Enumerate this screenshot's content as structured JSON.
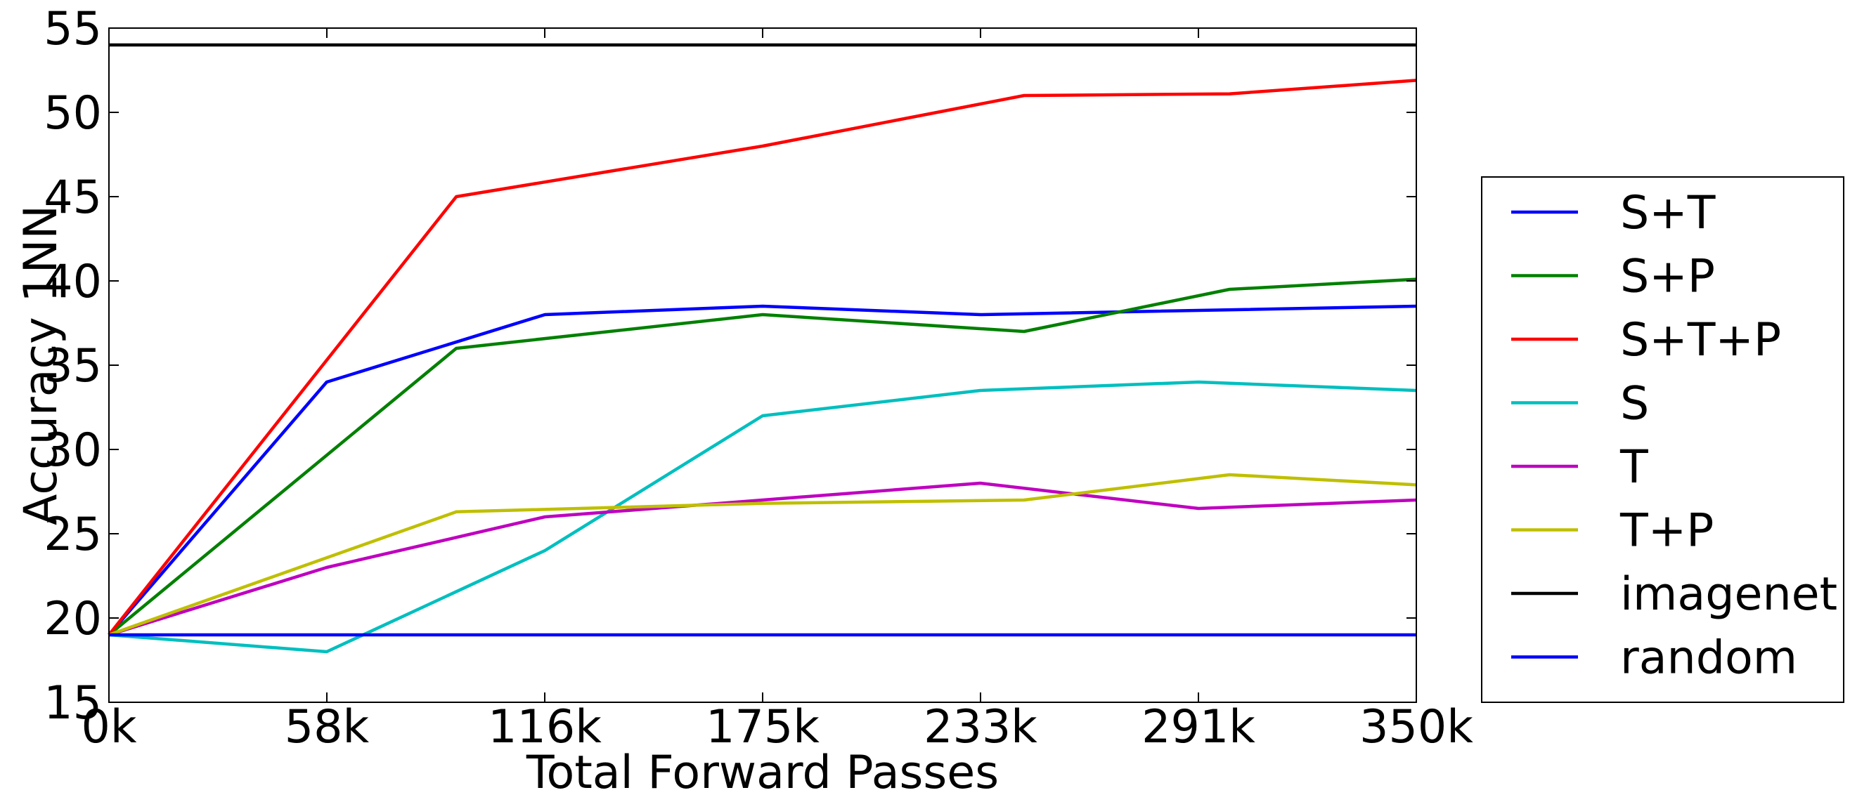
{
  "chart_data": {
    "type": "line",
    "xlabel": "Total Forward Passes",
    "ylabel": "Accuracy 1NN",
    "xlim": [
      0,
      350
    ],
    "ylim": [
      15,
      55
    ],
    "x_ticks": [
      {
        "value": 0,
        "label": "0k"
      },
      {
        "value": 58.33,
        "label": "58k"
      },
      {
        "value": 116.67,
        "label": "116k"
      },
      {
        "value": 175,
        "label": "175k"
      },
      {
        "value": 233.33,
        "label": "233k"
      },
      {
        "value": 291.67,
        "label": "291k"
      },
      {
        "value": 350,
        "label": "350k"
      }
    ],
    "y_ticks": [
      15,
      20,
      25,
      30,
      35,
      40,
      45,
      50,
      55
    ],
    "grid": false,
    "legend_position": "right",
    "series": [
      {
        "name": "S+T",
        "color": "#0000ff",
        "points": [
          [
            0,
            19
          ],
          [
            58.3,
            34
          ],
          [
            116.7,
            38
          ],
          [
            175,
            38.5
          ],
          [
            233.3,
            38
          ],
          [
            350,
            38.5
          ]
        ]
      },
      {
        "name": "S+P",
        "color": "#008000",
        "points": [
          [
            0,
            19
          ],
          [
            93,
            36
          ],
          [
            175,
            38
          ],
          [
            245,
            37
          ],
          [
            300,
            39.5
          ],
          [
            350,
            40.1
          ]
        ]
      },
      {
        "name": "S+T+P",
        "color": "#ff0000",
        "points": [
          [
            0,
            19
          ],
          [
            93,
            45
          ],
          [
            175,
            48
          ],
          [
            245,
            51
          ],
          [
            300,
            51.1
          ],
          [
            350,
            51.9
          ]
        ]
      },
      {
        "name": "S",
        "color": "#00bfbf",
        "points": [
          [
            0,
            19
          ],
          [
            58.3,
            18
          ],
          [
            116.7,
            24
          ],
          [
            175,
            32
          ],
          [
            233.3,
            33.5
          ],
          [
            291.7,
            34
          ],
          [
            350,
            33.5
          ]
        ]
      },
      {
        "name": "T",
        "color": "#bf00bf",
        "points": [
          [
            0,
            19
          ],
          [
            58.3,
            23
          ],
          [
            116.7,
            26
          ],
          [
            175,
            27
          ],
          [
            233.3,
            28
          ],
          [
            291.7,
            26.5
          ],
          [
            350,
            27
          ]
        ]
      },
      {
        "name": "T+P",
        "color": "#bfbf00",
        "points": [
          [
            0,
            19
          ],
          [
            93,
            26.3
          ],
          [
            175,
            26.8
          ],
          [
            245,
            27
          ],
          [
            300,
            28.5
          ],
          [
            350,
            27.9
          ]
        ]
      },
      {
        "name": "imagenet",
        "color": "#000000",
        "points": [
          [
            0,
            54
          ],
          [
            350,
            54
          ]
        ]
      },
      {
        "name": "random",
        "color": "#0000ff",
        "points": [
          [
            0,
            19
          ],
          [
            350,
            19
          ]
        ]
      }
    ]
  }
}
